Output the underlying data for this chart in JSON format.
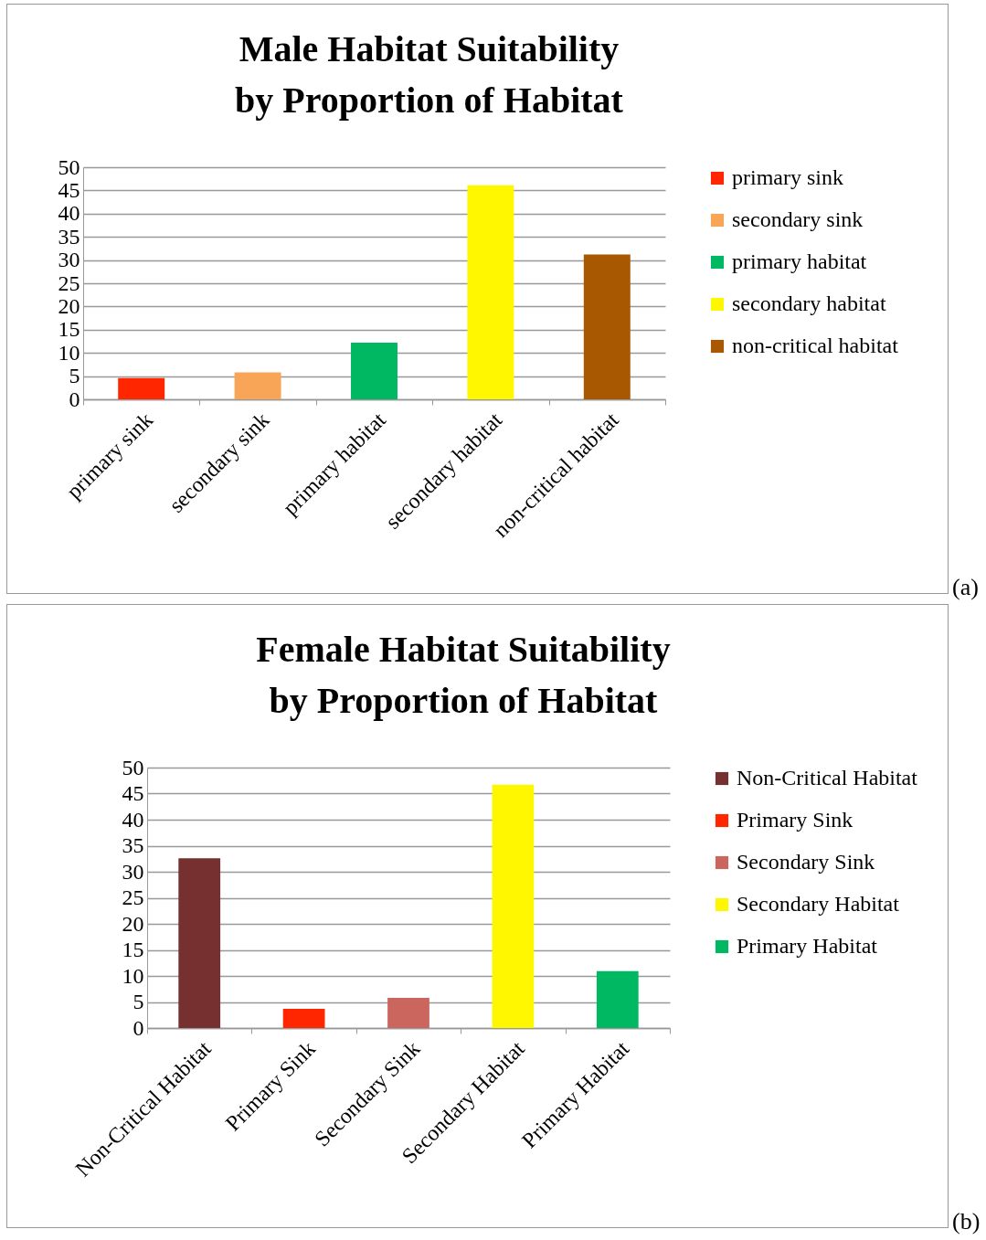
{
  "chart_data": [
    {
      "type": "bar",
      "title": "Male Habitat Suitability by Proportion of Habitat",
      "categories": [
        "primary sink",
        "secondary sink",
        "primary habitat",
        "secondary habitat",
        "non-critical habitat"
      ],
      "series": [
        {
          "name": "primary sink",
          "color": "#ff2600",
          "values": [
            4.6,
            null,
            null,
            null,
            null
          ]
        },
        {
          "name": "secondary sink",
          "color": "#f9a557",
          "values": [
            null,
            5.8,
            null,
            null,
            null
          ]
        },
        {
          "name": "primary habitat",
          "color": "#00b862",
          "values": [
            null,
            null,
            12.2,
            null,
            null
          ]
        },
        {
          "name": "secondary habitat",
          "color": "#fff700",
          "values": [
            null,
            null,
            null,
            46.1,
            null
          ]
        },
        {
          "name": "non-critical habitat",
          "color": "#a85800",
          "values": [
            null,
            null,
            null,
            null,
            31.2
          ]
        }
      ],
      "ylim": [
        0,
        50
      ],
      "yticks": [
        0,
        5,
        10,
        15,
        20,
        25,
        30,
        35,
        40,
        45,
        50
      ],
      "grid": "y",
      "legend": "right",
      "annotations": [
        "(a)"
      ]
    },
    {
      "type": "bar",
      "title": "Female Habitat Suitability by Proportion of Habitat",
      "categories": [
        "Non-Critical Habitat",
        "Primary Sink",
        "Secondary Sink",
        "Secondary Habitat",
        "Primary Habitat"
      ],
      "series": [
        {
          "name": "Non-Critical Habitat",
          "color": "#76302f",
          "values": [
            32.6,
            null,
            null,
            null,
            null
          ]
        },
        {
          "name": "Primary Sink",
          "color": "#ff2600",
          "values": [
            null,
            3.7,
            null,
            null,
            null
          ]
        },
        {
          "name": "Secondary Sink",
          "color": "#cb665f",
          "values": [
            null,
            null,
            5.8,
            null,
            null
          ]
        },
        {
          "name": "Secondary Habitat",
          "color": "#fff700",
          "values": [
            null,
            null,
            null,
            46.7,
            null
          ]
        },
        {
          "name": "Primary Habitat",
          "color": "#00b862",
          "values": [
            null,
            null,
            null,
            null,
            10.9
          ]
        }
      ],
      "ylim": [
        0,
        50
      ],
      "yticks": [
        0,
        5,
        10,
        15,
        20,
        25,
        30,
        35,
        40,
        45,
        50
      ],
      "grid": "y",
      "legend": "right",
      "annotations": [
        "(b)"
      ]
    }
  ]
}
